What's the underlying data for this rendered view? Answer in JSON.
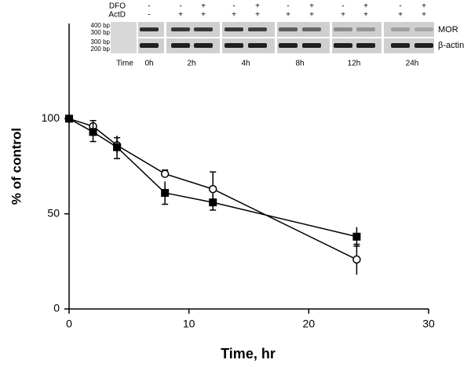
{
  "chart_data": {
    "type": "line",
    "x_label": "Time, hr",
    "y_label": "% of control",
    "xlim": [
      0,
      30
    ],
    "xticks": [
      0,
      10,
      20,
      30
    ],
    "ylim": [
      0,
      150
    ],
    "yticks": [
      0,
      50,
      100
    ],
    "series": [
      {
        "marker": "circle",
        "color": "#000000",
        "x": [
          0,
          2,
          4,
          8,
          12,
          24
        ],
        "values": [
          100,
          96,
          86,
          71,
          63,
          26
        ],
        "errors": [
          0,
          3,
          4,
          2,
          9,
          8
        ]
      },
      {
        "marker": "square",
        "color": "#000000",
        "x": [
          0,
          2,
          4,
          8,
          12,
          24
        ],
        "values": [
          100,
          93,
          85,
          61,
          56,
          38
        ],
        "errors": [
          0,
          5,
          6,
          6,
          4,
          5
        ]
      }
    ]
  },
  "gel_inset": {
    "row_labels": [
      "DFO",
      "ActD"
    ],
    "dfo": [
      "-",
      "-",
      "+",
      "-",
      "+",
      "-",
      "+",
      "-",
      "+",
      "-",
      "+"
    ],
    "actd": [
      "-",
      "+",
      "+",
      "+",
      "+",
      "+",
      "+",
      "+",
      "+",
      "+",
      "+"
    ],
    "size_markers": [
      "400 bp",
      "300 bp",
      "300 bp",
      "200 bp"
    ],
    "time_label": "Time",
    "times": [
      "0h",
      "2h",
      "4h",
      "8h",
      "12h",
      "24h"
    ],
    "band_labels": [
      "MOR",
      "β-actin"
    ]
  }
}
